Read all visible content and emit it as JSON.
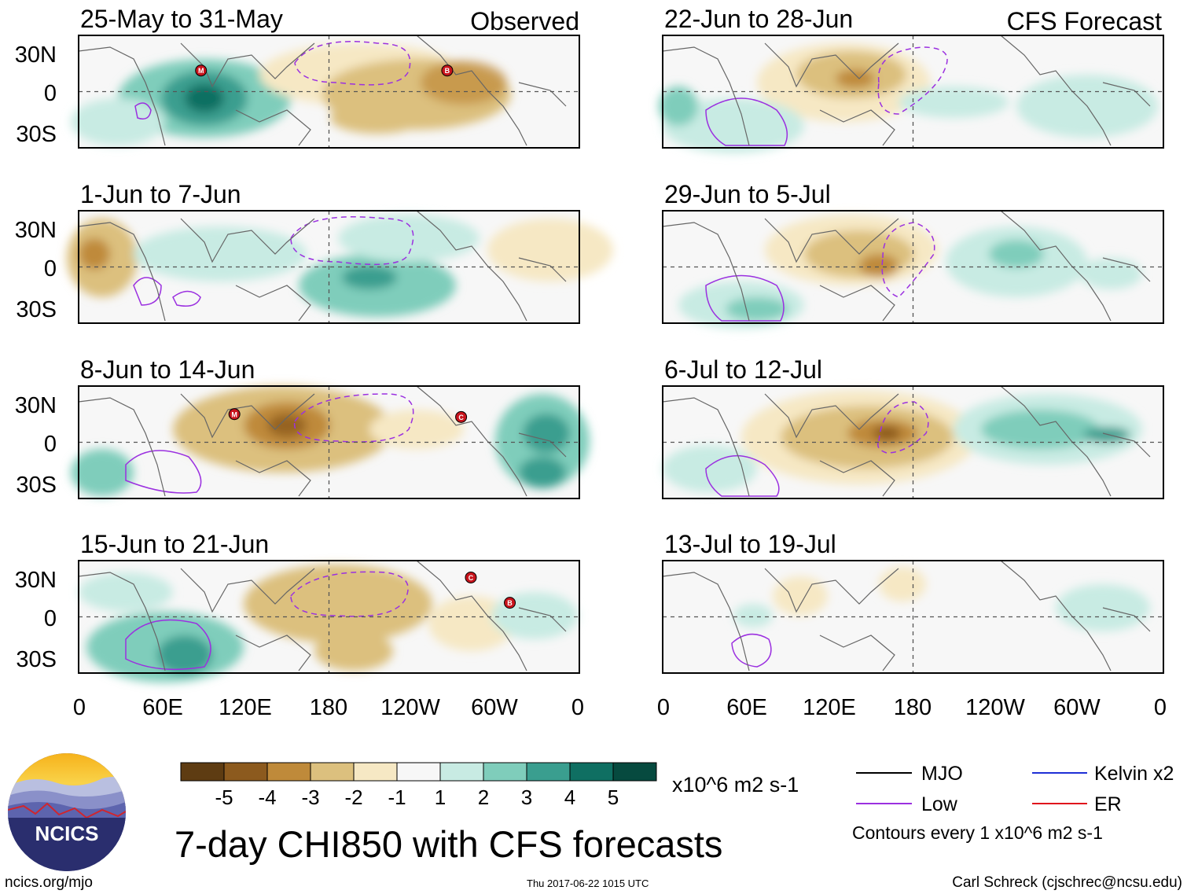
{
  "chart_data": {
    "type": "heatmap",
    "title": "7-day CHI850 with CFS forecasts",
    "variable": "CHI850",
    "units": "x10^6 m2 s-1",
    "column_labels": {
      "observed": "Observed",
      "forecast": "CFS Forecast"
    },
    "x_ticks": [
      "0",
      "60E",
      "120E",
      "180",
      "120W",
      "60W",
      "0"
    ],
    "y_ticks": [
      "30N",
      "0",
      "30S"
    ],
    "xlim_deg_east": [
      0,
      360
    ],
    "ylim_deg": [
      -40,
      40
    ],
    "colorbar": {
      "ticks": [
        "-5",
        "-4",
        "-3",
        "-2",
        "-1",
        "1",
        "2",
        "3",
        "4",
        "5"
      ],
      "colors": [
        "#5e3c12",
        "#8c5a1e",
        "#bf8a3a",
        "#dcc07e",
        "#f6e8c4",
        "#f7f7f7",
        "#c8ebe3",
        "#7fcdbb",
        "#3a9e8f",
        "#0f6f62",
        "#064a3f"
      ],
      "units": "x10^6 m2 s-1"
    },
    "panels": [
      {
        "id": "p1",
        "period": "25-May to 31-May",
        "source": "Observed",
        "anomalies": [
          {
            "lon": 90,
            "lat": -5,
            "value": 5
          },
          {
            "lon": 60,
            "lat": -15,
            "value": 3
          },
          {
            "lon": 195,
            "lat": 18,
            "value": -2
          },
          {
            "lon": 250,
            "lat": 5,
            "value": -3
          },
          {
            "lon": 210,
            "lat": -20,
            "value": -2
          }
        ],
        "storms": [
          {
            "label": "M",
            "lon": 88,
            "lat": 15
          },
          {
            "label": "B",
            "lon": 265,
            "lat": 15
          }
        ]
      },
      {
        "id": "p2",
        "period": "1-Jun to 7-Jun",
        "source": "Observed",
        "anomalies": [
          {
            "lon": 15,
            "lat": 10,
            "value": -3
          },
          {
            "lon": 190,
            "lat": -10,
            "value": 4
          },
          {
            "lon": 100,
            "lat": 0,
            "value": 2
          },
          {
            "lon": 320,
            "lat": 25,
            "value": -2
          }
        ],
        "storms": []
      },
      {
        "id": "p3",
        "period": "8-Jun to 14-Jun",
        "source": "Observed",
        "anomalies": [
          {
            "lon": 135,
            "lat": 15,
            "value": -4
          },
          {
            "lon": 335,
            "lat": 10,
            "value": 4
          },
          {
            "lon": 15,
            "lat": -25,
            "value": 2
          },
          {
            "lon": 330,
            "lat": -25,
            "value": 3
          }
        ],
        "storms": [
          {
            "label": "M",
            "lon": 112,
            "lat": 20
          },
          {
            "label": "C",
            "lon": 275,
            "lat": 18
          }
        ]
      },
      {
        "id": "p4",
        "period": "15-Jun to 21-Jun",
        "source": "Observed",
        "anomalies": [
          {
            "lon": 60,
            "lat": -30,
            "value": 4
          },
          {
            "lon": 165,
            "lat": 10,
            "value": -2
          },
          {
            "lon": 230,
            "lat": 5,
            "value": -2
          }
        ],
        "storms": [
          {
            "label": "C",
            "lon": 282,
            "lat": 28
          },
          {
            "label": "B",
            "lon": 310,
            "lat": 10
          }
        ]
      },
      {
        "id": "p5",
        "period": "22-Jun to 28-Jun",
        "source": "CFS Forecast",
        "anomalies": [
          {
            "lon": 130,
            "lat": 10,
            "value": -3
          },
          {
            "lon": 40,
            "lat": -15,
            "value": 2
          },
          {
            "lon": 330,
            "lat": -10,
            "value": 1
          }
        ],
        "storms": []
      },
      {
        "id": "p6",
        "period": "29-Jun to 5-Jul",
        "source": "CFS Forecast",
        "anomalies": [
          {
            "lon": 155,
            "lat": 0,
            "value": -3
          },
          {
            "lon": 260,
            "lat": 10,
            "value": 2
          },
          {
            "lon": 60,
            "lat": -30,
            "value": 2
          }
        ],
        "storms": []
      },
      {
        "id": "p7",
        "period": "6-Jul to 12-Jul",
        "source": "CFS Forecast",
        "anomalies": [
          {
            "lon": 155,
            "lat": 5,
            "value": -4
          },
          {
            "lon": 270,
            "lat": 10,
            "value": 3
          },
          {
            "lon": 40,
            "lat": -20,
            "value": 2
          }
        ],
        "storms": []
      },
      {
        "id": "p8",
        "period": "13-Jul to 19-Jul",
        "source": "CFS Forecast",
        "anomalies": [
          {
            "lon": 190,
            "lat": 25,
            "value": -1
          },
          {
            "lon": 300,
            "lat": 0,
            "value": 1
          }
        ],
        "storms": []
      }
    ],
    "legend": {
      "items": [
        {
          "label": "MJO",
          "color": "#000000"
        },
        {
          "label": "Kelvin x2",
          "color": "#1f2fd6"
        },
        {
          "label": "Low",
          "color": "#9b30e0"
        },
        {
          "label": "ER",
          "color": "#e0101c"
        }
      ],
      "note": "Contours every 1 x10^6 m2 s-1"
    }
  },
  "footer": {
    "logo_text": "NCICS",
    "url": "ncics.org/mjo",
    "timestamp": "Thu 2017-06-22 1015 UTC",
    "credit": "Carl Schreck (cjschrec@ncsu.edu)"
  }
}
